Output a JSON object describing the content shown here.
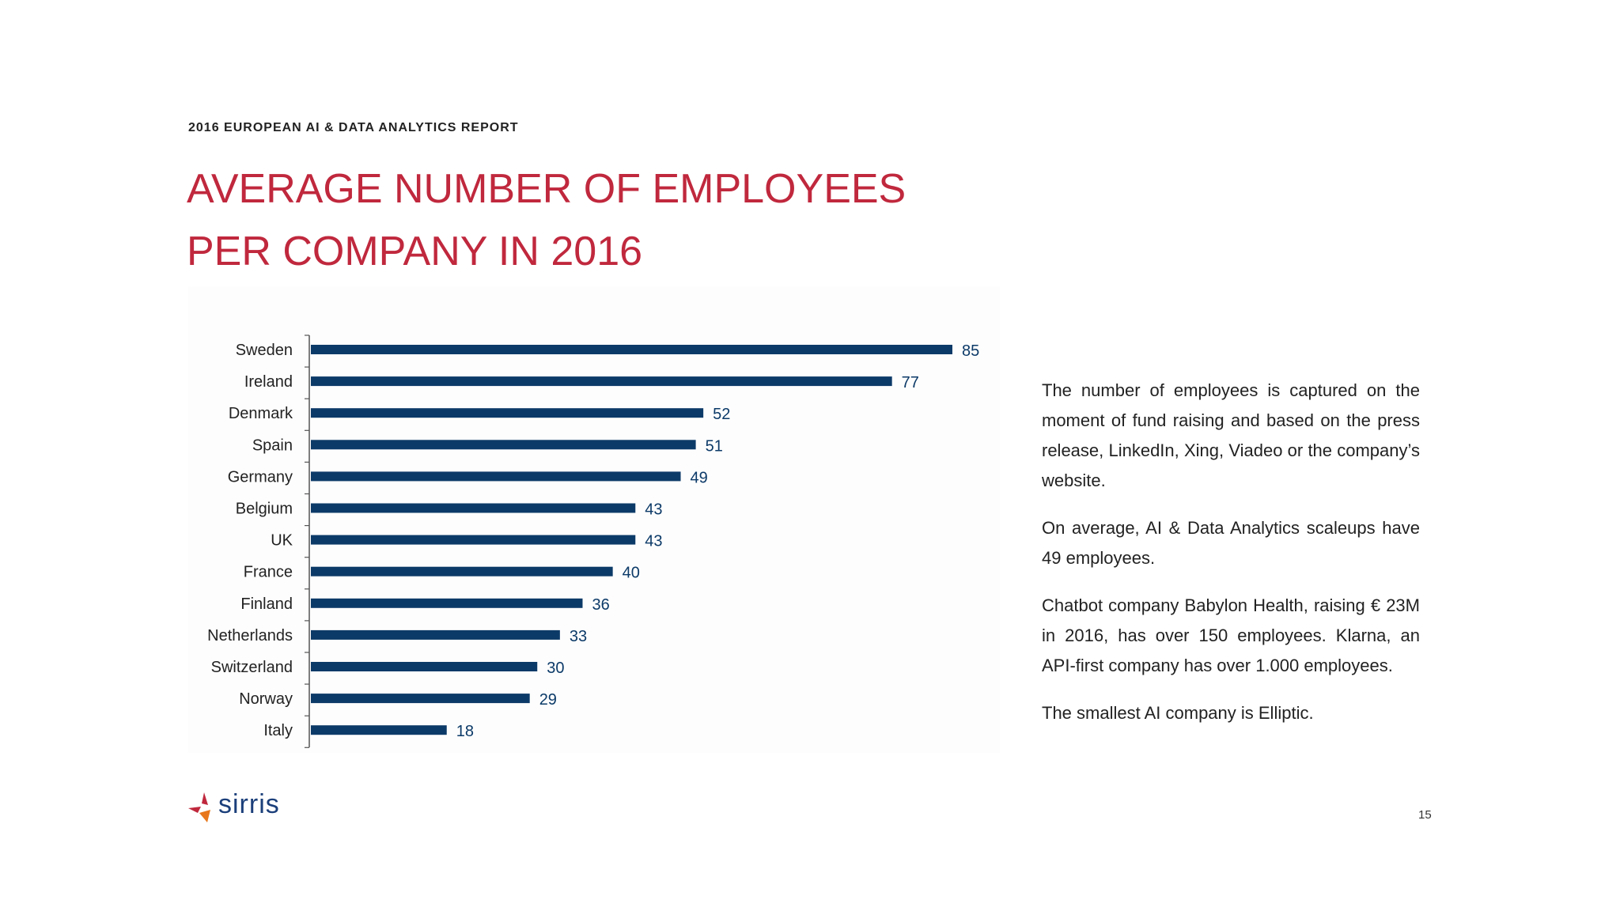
{
  "header": {
    "report_label": "2016 EUROPEAN AI & DATA ANALYTICS REPORT",
    "title_line1": "AVERAGE NUMBER OF EMPLOYEES",
    "title_line2": "PER COMPANY IN 2016"
  },
  "colors": {
    "title": "#c0283d",
    "bar": "#0c3a68",
    "value_label": "#0c3a68",
    "text": "#222222",
    "logo_text": "#1b3f7a"
  },
  "chart_data": {
    "type": "bar",
    "orientation": "horizontal",
    "categories": [
      "Sweden",
      "Ireland",
      "Denmark",
      "Spain",
      "Germany",
      "Belgium",
      "UK",
      "France",
      "Finland",
      "Netherlands",
      "Switzerland",
      "Norway",
      "Italy"
    ],
    "values": [
      85,
      77,
      52,
      51,
      49,
      43,
      43,
      40,
      36,
      33,
      30,
      29,
      18
    ],
    "value_labels": [
      "85",
      "77",
      "52",
      "51",
      "49",
      "43",
      "43",
      "40",
      "36",
      "33",
      "30",
      "29",
      "18"
    ],
    "xlim": [
      0,
      85
    ],
    "grid": false,
    "data_labels": true
  },
  "body_text": {
    "paragraph1": "The number of employees is captured on the moment of fund raising and based on the press release, LinkedIn, Xing, Viadeo or the company’s website.",
    "paragraph2": "On average, AI & Data Analytics scaleups have 49 employees.",
    "paragraph3": "Chatbot company Babylon Health, raising € 23M in 2016, has over 150 employees. Klarna, an API-first company has over 1.000 employees.",
    "paragraph4": "The smallest AI company is Elliptic."
  },
  "footer": {
    "logo_text": "sirris",
    "logo_icon": "sirris-logo-icon",
    "page_number": "15"
  }
}
